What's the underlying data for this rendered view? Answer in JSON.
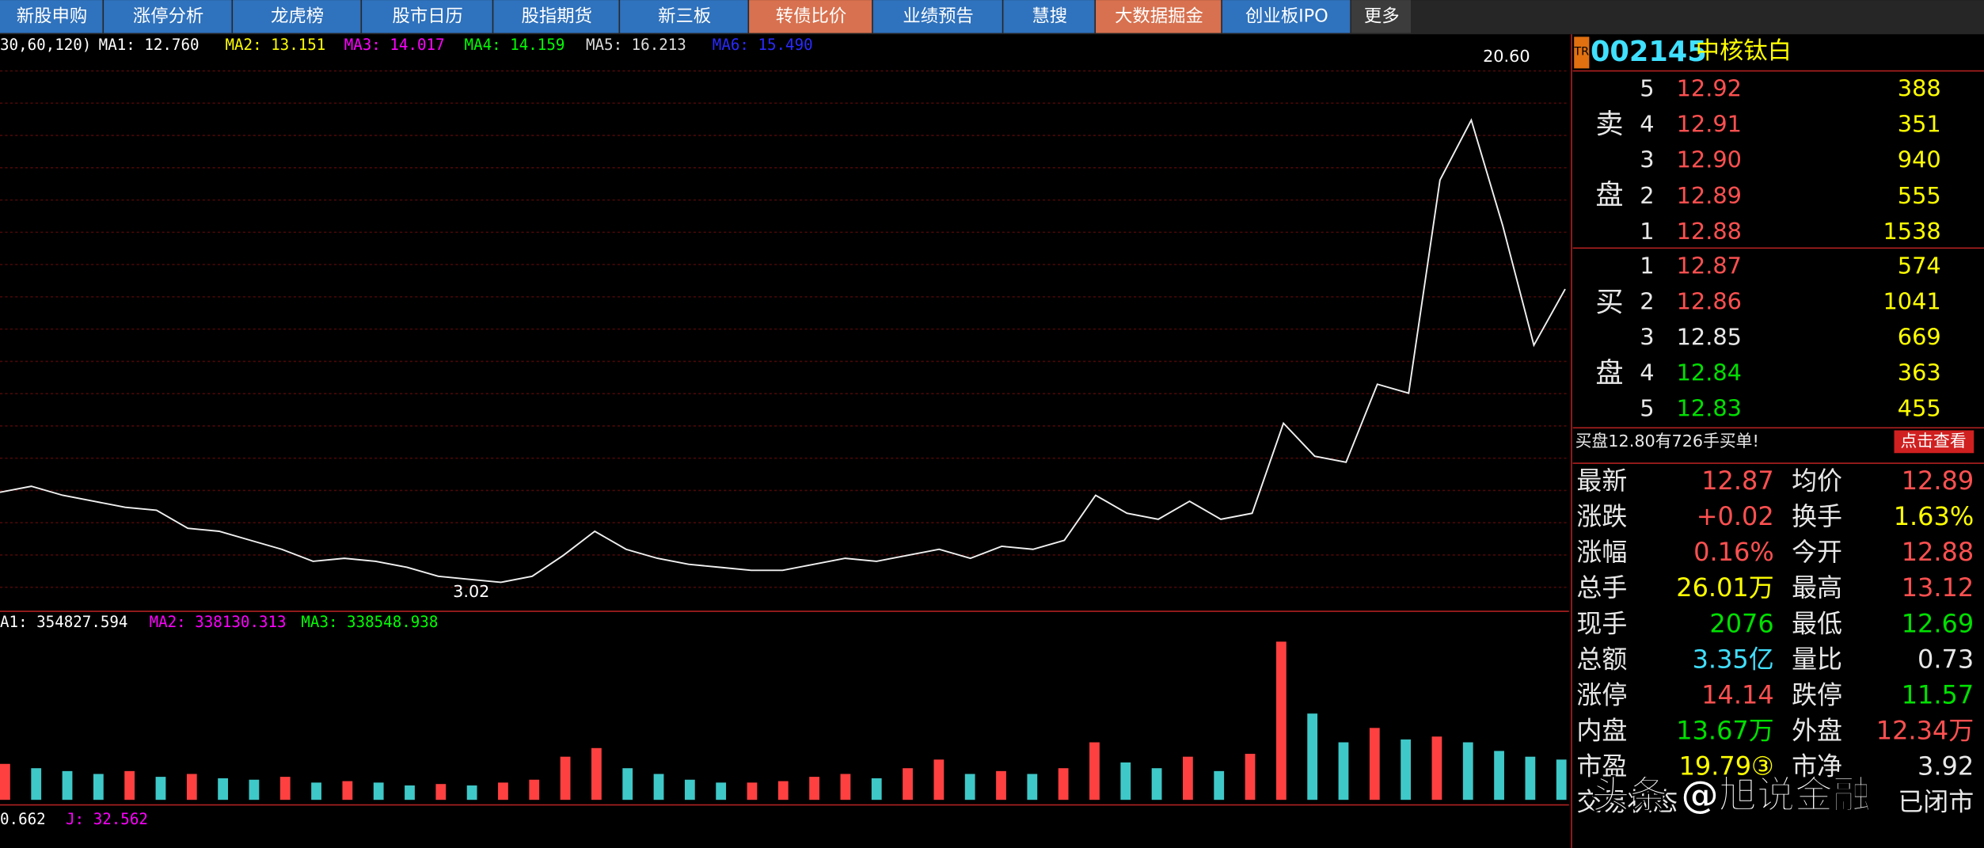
{
  "tabs": [
    {
      "label": "新股申购",
      "color": "#2f72bd"
    },
    {
      "label": "涨停分析",
      "color": "#2f72bd"
    },
    {
      "label": "龙虎榜",
      "color": "#2f72bd"
    },
    {
      "label": "股市日历",
      "color": "#2f72bd"
    },
    {
      "label": "股指期货",
      "color": "#2f72bd"
    },
    {
      "label": "新三板",
      "color": "#2f72bd"
    },
    {
      "label": "转债比价",
      "color": "#d8714f"
    },
    {
      "label": "业绩预告",
      "color": "#2f72bd"
    },
    {
      "label": "慧搜",
      "color": "#2f72bd"
    },
    {
      "label": "大数据掘金",
      "color": "#d8714f"
    },
    {
      "label": "创业板IPO",
      "color": "#2f72bd"
    },
    {
      "label": "更多",
      "color": "#3c3c3c"
    }
  ],
  "price_chart": {
    "legend": [
      {
        "text": "30,60,120)",
        "color": "#ffffff"
      },
      {
        "text": "MA1: 12.760",
        "color": "#ffffff"
      },
      {
        "text": "MA2: 13.151",
        "color": "#ffff00"
      },
      {
        "text": "MA3: 14.017",
        "color": "#ff00ff"
      },
      {
        "text": "MA4: 14.159",
        "color": "#00ff00"
      },
      {
        "text": "MA5: 16.213",
        "color": "#dddddd"
      },
      {
        "text": "MA6: 15.490",
        "color": "#2a2aff"
      }
    ],
    "high": {
      "value": 20.6,
      "label": "20.60"
    },
    "low": {
      "value": 3.02,
      "label": "3.02"
    },
    "color": "#f0f0f0",
    "closes": [
      6.1,
      6.3,
      6.0,
      5.8,
      5.6,
      5.5,
      4.9,
      4.8,
      4.5,
      4.2,
      3.8,
      3.9,
      3.8,
      3.6,
      3.3,
      3.2,
      3.1,
      3.3,
      4.0,
      4.8,
      4.2,
      3.9,
      3.7,
      3.6,
      3.5,
      3.5,
      3.7,
      3.9,
      3.8,
      4.0,
      4.2,
      3.9,
      4.3,
      4.2,
      4.5,
      6.0,
      5.4,
      5.2,
      5.8,
      5.2,
      5.4,
      8.4,
      7.3,
      7.1,
      9.7,
      9.4,
      16.5,
      18.5,
      15.0,
      11.0,
      12.87
    ]
  },
  "volume_chart": {
    "legend": [
      {
        "text": "A1: 354827.594",
        "color": "#ffffff"
      },
      {
        "text": "MA2: 338130.313",
        "color": "#ff00ff"
      },
      {
        "text": "MA3: 338548.938",
        "color": "#00ff00"
      }
    ],
    "up_color": "#ff4040",
    "down_color": "#3fc8c8",
    "values": [
      25,
      22,
      20,
      18,
      20,
      16,
      18,
      15,
      14,
      16,
      12,
      13,
      12,
      10,
      11,
      10,
      12,
      14,
      30,
      36,
      22,
      18,
      14,
      12,
      12,
      13,
      16,
      18,
      15,
      22,
      28,
      18,
      20,
      18,
      22,
      40,
      26,
      22,
      30,
      20,
      32,
      110,
      60,
      40,
      50,
      42,
      44,
      40,
      34,
      30,
      28
    ]
  },
  "kdj": {
    "legend": [
      {
        "text": "0.662",
        "color": "#ffffff"
      },
      {
        "text": "J: 32.562",
        "color": "#ff00ff"
      }
    ]
  },
  "quote": {
    "badge": "TR",
    "code": "002145",
    "name": "中核钛白",
    "sell_label": [
      "卖",
      "盘"
    ],
    "buy_label": [
      "买",
      "盘"
    ],
    "sell": [
      {
        "level": "5",
        "price": "12.92",
        "volume": "388",
        "color": "#ff5050"
      },
      {
        "level": "4",
        "price": "12.91",
        "volume": "351",
        "color": "#ff5050"
      },
      {
        "level": "3",
        "price": "12.90",
        "volume": "940",
        "color": "#ff5050"
      },
      {
        "level": "2",
        "price": "12.89",
        "volume": "555",
        "color": "#ff5050"
      },
      {
        "level": "1",
        "price": "12.88",
        "volume": "1538",
        "color": "#ff5050"
      }
    ],
    "buy": [
      {
        "level": "1",
        "price": "12.87",
        "volume": "574",
        "color": "#ff5050"
      },
      {
        "level": "2",
        "price": "12.86",
        "volume": "1041",
        "color": "#ff5050"
      },
      {
        "level": "3",
        "price": "12.85",
        "volume": "669",
        "color": "#e8e8e8"
      },
      {
        "level": "4",
        "price": "12.84",
        "volume": "363",
        "color": "#00e000"
      },
      {
        "level": "5",
        "price": "12.83",
        "volume": "455",
        "color": "#00e000"
      }
    ],
    "notice": "买盘12.80有726手买单!",
    "button": "点击查看",
    "stats": [
      [
        {
          "text": "最新"
        },
        {
          "text": "12.87",
          "color": "#ff5050"
        },
        {
          "text": "均价"
        },
        {
          "text": "12.89",
          "color": "#ff5050"
        }
      ],
      [
        {
          "text": "涨跌"
        },
        {
          "text": "+0.02",
          "color": "#ff5050"
        },
        {
          "text": "换手"
        },
        {
          "text": "1.63%",
          "color": "#ffff00"
        }
      ],
      [
        {
          "text": "涨幅"
        },
        {
          "text": "0.16%",
          "color": "#ff5050"
        },
        {
          "text": "今开"
        },
        {
          "text": "12.88",
          "color": "#ff5050"
        }
      ],
      [
        {
          "text": "总手"
        },
        {
          "text": "26.01万",
          "color": "#ffff00"
        },
        {
          "text": "最高"
        },
        {
          "text": "13.12",
          "color": "#ff5050"
        }
      ],
      [
        {
          "text": "现手"
        },
        {
          "text": "2076",
          "color": "#00e000"
        },
        {
          "text": "最低"
        },
        {
          "text": "12.69",
          "color": "#00e000"
        }
      ],
      [
        {
          "text": "总额"
        },
        {
          "text": "3.35亿",
          "color": "#40e0ff"
        },
        {
          "text": "量比"
        },
        {
          "text": "0.73",
          "color": "#e8e8e8"
        }
      ],
      [
        {
          "text": "涨停"
        },
        {
          "text": "14.14",
          "color": "#ff5050"
        },
        {
          "text": "跌停"
        },
        {
          "text": "11.57",
          "color": "#00e000"
        }
      ],
      [
        {
          "text": "内盘"
        },
        {
          "text": "13.67万",
          "color": "#00e000"
        },
        {
          "text": "外盘"
        },
        {
          "text": "12.34万",
          "color": "#ff5050"
        }
      ],
      [
        {
          "text": "市盈"
        },
        {
          "text": "19.79③",
          "color": "#ffff00"
        },
        {
          "text": "市净"
        },
        {
          "text": "3.92",
          "color": "#e8e8e8"
        }
      ],
      [
        {
          "text": "交易状态"
        },
        {
          "text": ""
        },
        {
          "text": "已闭市"
        },
        {
          "text": ""
        }
      ]
    ]
  },
  "watermark": "头条 @旭说金融"
}
